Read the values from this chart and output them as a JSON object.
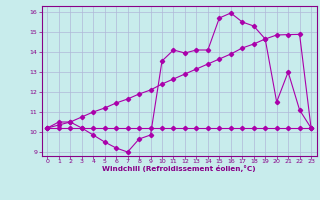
{
  "xlabel": "Windchill (Refroidissement éolien,°C)",
  "bg_color": "#c8ecec",
  "grid_color": "#b0b8d8",
  "line_color": "#aa00aa",
  "xlim": [
    -0.5,
    23.5
  ],
  "ylim": [
    8.8,
    16.3
  ],
  "xticks": [
    0,
    1,
    2,
    3,
    4,
    5,
    6,
    7,
    8,
    9,
    10,
    11,
    12,
    13,
    14,
    15,
    16,
    17,
    18,
    19,
    20,
    21,
    22,
    23
  ],
  "yticks": [
    9,
    10,
    11,
    12,
    13,
    14,
    15,
    16
  ],
  "line1_x": [
    0,
    1,
    2,
    3,
    4,
    5,
    6,
    7,
    8,
    9,
    10,
    11,
    12,
    13,
    14,
    15,
    16,
    17,
    18,
    19,
    20,
    21,
    22,
    23
  ],
  "line1_y": [
    10.2,
    10.2,
    10.2,
    10.2,
    10.2,
    10.2,
    10.2,
    10.2,
    10.2,
    10.2,
    10.2,
    10.2,
    10.2,
    10.2,
    10.2,
    10.2,
    10.2,
    10.2,
    10.2,
    10.2,
    10.2,
    10.2,
    10.2,
    10.2
  ],
  "line2_x": [
    0,
    1,
    2,
    3,
    4,
    5,
    6,
    7,
    8,
    9,
    10,
    11,
    12,
    13,
    14,
    15,
    16,
    17,
    18,
    19,
    20,
    21,
    22,
    23
  ],
  "line2_y": [
    10.2,
    10.35,
    10.5,
    10.75,
    11.0,
    11.2,
    11.45,
    11.65,
    11.9,
    12.1,
    12.4,
    12.65,
    12.9,
    13.15,
    13.4,
    13.65,
    13.9,
    14.2,
    14.4,
    14.65,
    14.85,
    14.87,
    14.88,
    10.2
  ],
  "line3_x": [
    0,
    1,
    2,
    3,
    4,
    5,
    6,
    7,
    8,
    9,
    10,
    11,
    12,
    13,
    14,
    15,
    16,
    17,
    18,
    19,
    20,
    21,
    22,
    23
  ],
  "line3_y": [
    10.2,
    10.5,
    10.5,
    10.2,
    9.85,
    9.5,
    9.2,
    9.0,
    9.65,
    9.85,
    13.55,
    14.1,
    13.95,
    14.1,
    14.1,
    15.7,
    15.95,
    15.5,
    15.3,
    14.65,
    11.5,
    13.0,
    11.1,
    10.2
  ]
}
